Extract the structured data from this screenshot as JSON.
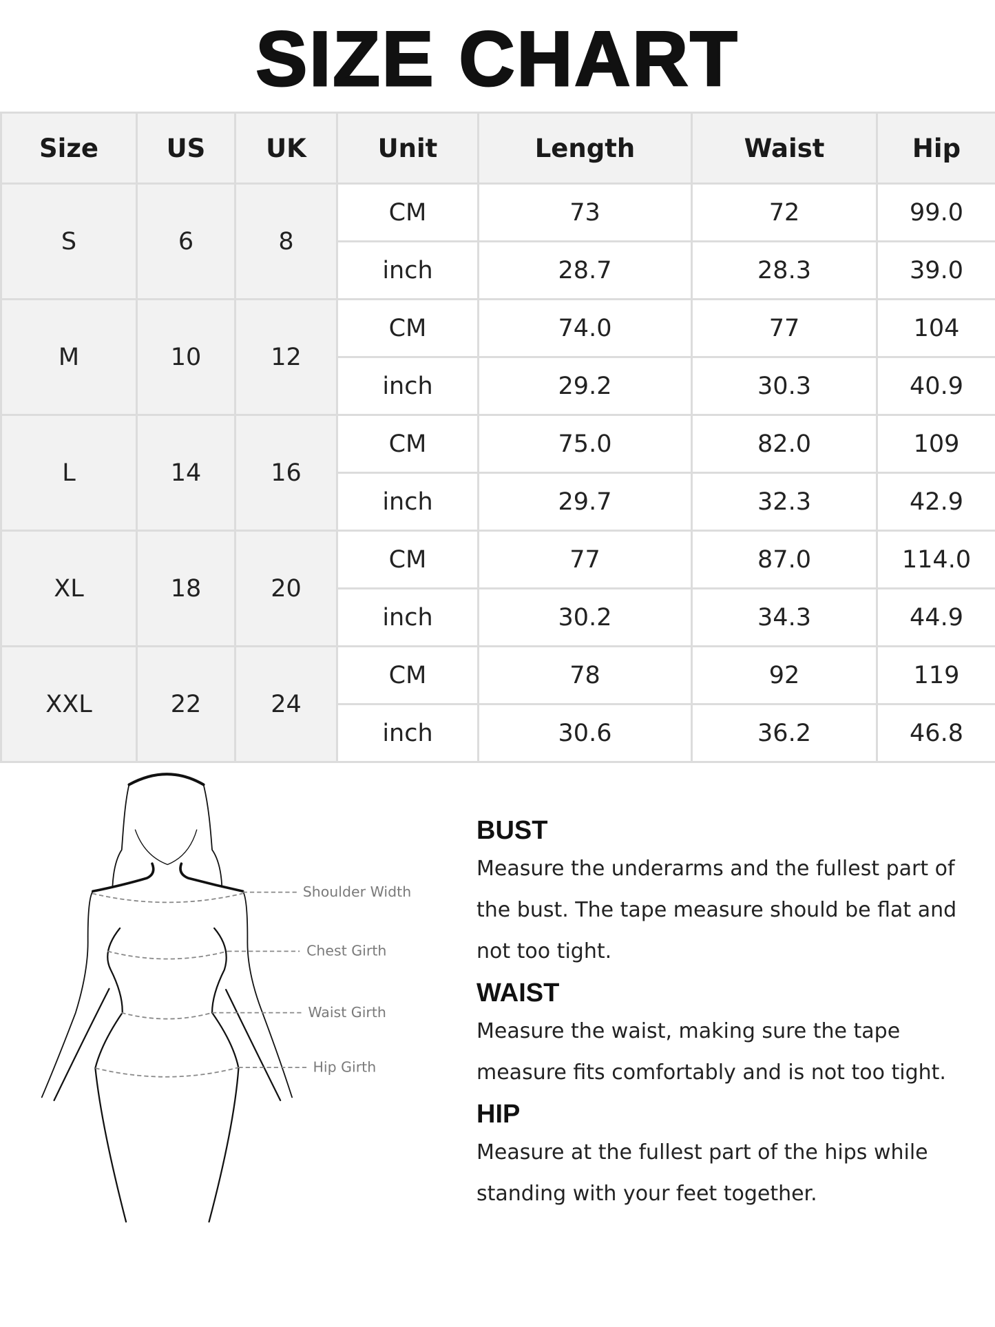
{
  "title": "SIZE CHART",
  "table": {
    "headers": [
      "Size",
      "US",
      "UK",
      "Unit",
      "Length",
      "Waist",
      "Hip"
    ],
    "rows": [
      {
        "size": "S",
        "us": "6",
        "uk": "8",
        "cm": {
          "unit": "CM",
          "length": "73",
          "waist": "72",
          "hip": "99.0"
        },
        "inch": {
          "unit": "inch",
          "length": "28.7",
          "waist": "28.3",
          "hip": "39.0"
        }
      },
      {
        "size": "M",
        "us": "10",
        "uk": "12",
        "cm": {
          "unit": "CM",
          "length": "74.0",
          "waist": "77",
          "hip": "104"
        },
        "inch": {
          "unit": "inch",
          "length": "29.2",
          "waist": "30.3",
          "hip": "40.9"
        }
      },
      {
        "size": "L",
        "us": "14",
        "uk": "16",
        "cm": {
          "unit": "CM",
          "length": "75.0",
          "waist": "82.0",
          "hip": "109"
        },
        "inch": {
          "unit": "inch",
          "length": "29.7",
          "waist": "32.3",
          "hip": "42.9"
        }
      },
      {
        "size": "XL",
        "us": "18",
        "uk": "20",
        "cm": {
          "unit": "CM",
          "length": "77",
          "waist": "87.0",
          "hip": "114.0"
        },
        "inch": {
          "unit": "inch",
          "length": "30.2",
          "waist": "34.3",
          "hip": "44.9"
        }
      },
      {
        "size": "XXL",
        "us": "22",
        "uk": "24",
        "cm": {
          "unit": "CM",
          "length": "78",
          "waist": "92",
          "hip": "119"
        },
        "inch": {
          "unit": "inch",
          "length": "30.6",
          "waist": "36.2",
          "hip": "46.8"
        }
      }
    ]
  },
  "figure": {
    "labels": [
      "Shoulder Width",
      "Chest Girth",
      "Waist Girth",
      "Hip Girth"
    ]
  },
  "guide": [
    {
      "heading": "BUST",
      "text": "Measure the underarms and the fullest part of the bust. The tape measure should be flat and not too tight."
    },
    {
      "heading": "WAIST",
      "text": "Measure the waist, making sure the tape measure fits comfortably and is not too tight."
    },
    {
      "heading": "HIP",
      "text": "Measure at the fullest part of the hips while standing with your feet together."
    }
  ],
  "colors": {
    "header_bg": "#f2f2f2",
    "border": "#dcdcdc",
    "label_gray": "#7a7a7a"
  }
}
